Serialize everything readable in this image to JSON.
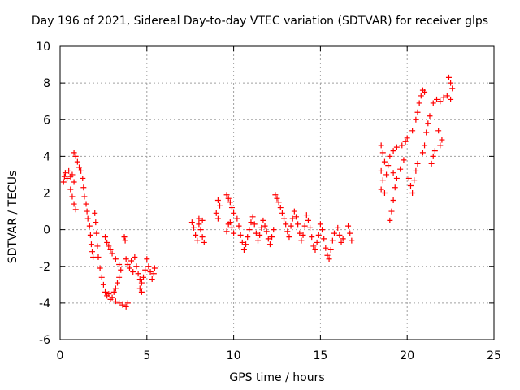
{
  "chart_data": {
    "type": "scatter",
    "title": "Day 196 of 2021, Sidereal Day-to-day VTEC variation (SDTVAR) for receiver glps",
    "xlabel": "GPS time / hours",
    "ylabel": "SDTVAR / TECUs",
    "xlim": [
      0,
      25
    ],
    "ylim": [
      -6,
      10
    ],
    "xticks": [
      0,
      5,
      10,
      15,
      20,
      25
    ],
    "yticks": [
      -6,
      -4,
      -2,
      0,
      2,
      4,
      6,
      8,
      10
    ],
    "grid": true,
    "marker": "+",
    "color": "#ff0000",
    "series": [
      {
        "name": "SDTVAR",
        "points": [
          [
            0.2,
            2.6
          ],
          [
            0.25,
            2.9
          ],
          [
            0.3,
            3.1
          ],
          [
            0.4,
            2.8
          ],
          [
            0.5,
            3.2
          ],
          [
            0.6,
            2.9
          ],
          [
            0.7,
            3.0
          ],
          [
            0.8,
            2.6
          ],
          [
            0.6,
            2.2
          ],
          [
            0.7,
            1.8
          ],
          [
            0.8,
            1.4
          ],
          [
            0.9,
            1.1
          ],
          [
            0.8,
            4.2
          ],
          [
            0.9,
            4.0
          ],
          [
            1.0,
            3.7
          ],
          [
            1.1,
            3.4
          ],
          [
            1.2,
            3.2
          ],
          [
            1.3,
            2.8
          ],
          [
            1.35,
            2.3
          ],
          [
            1.4,
            1.8
          ],
          [
            1.5,
            1.4
          ],
          [
            1.55,
            1.0
          ],
          [
            1.6,
            0.6
          ],
          [
            1.7,
            0.2
          ],
          [
            1.75,
            -0.3
          ],
          [
            1.8,
            -0.8
          ],
          [
            1.85,
            -1.2
          ],
          [
            1.9,
            -1.5
          ],
          [
            2.0,
            0.9
          ],
          [
            2.05,
            0.4
          ],
          [
            2.1,
            -0.2
          ],
          [
            2.15,
            -0.9
          ],
          [
            2.2,
            -1.5
          ],
          [
            2.3,
            -2.1
          ],
          [
            2.4,
            -2.6
          ],
          [
            2.5,
            -3.0
          ],
          [
            2.6,
            -3.4
          ],
          [
            2.7,
            -3.6
          ],
          [
            2.8,
            -3.5
          ],
          [
            2.9,
            -3.8
          ],
          [
            3.0,
            -3.7
          ],
          [
            3.2,
            -3.9
          ],
          [
            3.4,
            -4.0
          ],
          [
            3.6,
            -4.1
          ],
          [
            3.8,
            -4.2
          ],
          [
            3.9,
            -4.0
          ],
          [
            2.6,
            -0.4
          ],
          [
            2.7,
            -0.7
          ],
          [
            2.8,
            -0.9
          ],
          [
            2.9,
            -1.1
          ],
          [
            3.0,
            -1.3
          ],
          [
            3.2,
            -1.6
          ],
          [
            3.4,
            -1.9
          ],
          [
            3.5,
            -2.2
          ],
          [
            3.4,
            -2.6
          ],
          [
            3.3,
            -2.9
          ],
          [
            3.2,
            -3.2
          ],
          [
            3.1,
            -3.4
          ],
          [
            3.7,
            -0.4
          ],
          [
            3.75,
            -0.6
          ],
          [
            3.8,
            -1.6
          ],
          [
            3.9,
            -1.9
          ],
          [
            4.0,
            -2.1
          ],
          [
            4.2,
            -2.3
          ],
          [
            4.1,
            -1.7
          ],
          [
            4.3,
            -1.5
          ],
          [
            4.4,
            -2.0
          ],
          [
            4.5,
            -2.4
          ],
          [
            4.6,
            -2.7
          ],
          [
            4.7,
            -2.9
          ],
          [
            4.8,
            -2.6
          ],
          [
            4.9,
            -2.2
          ],
          [
            5.0,
            -1.6
          ],
          [
            5.1,
            -2.0
          ],
          [
            5.2,
            -2.3
          ],
          [
            5.3,
            -2.7
          ],
          [
            5.4,
            -2.4
          ],
          [
            5.45,
            -2.1
          ],
          [
            4.6,
            -3.2
          ],
          [
            4.7,
            -3.4
          ],
          [
            7.6,
            0.4
          ],
          [
            7.7,
            0.1
          ],
          [
            7.8,
            -0.3
          ],
          [
            7.9,
            -0.6
          ],
          [
            8.0,
            0.3
          ],
          [
            8.1,
            0.0
          ],
          [
            8.2,
            -0.4
          ],
          [
            8.3,
            -0.7
          ],
          [
            8.0,
            0.6
          ],
          [
            8.2,
            0.5
          ],
          [
            9.1,
            1.6
          ],
          [
            9.2,
            1.3
          ],
          [
            9.0,
            0.9
          ],
          [
            9.1,
            0.6
          ],
          [
            9.6,
            1.9
          ],
          [
            9.7,
            1.7
          ],
          [
            9.8,
            1.5
          ],
          [
            9.9,
            1.2
          ],
          [
            10.0,
            0.9
          ],
          [
            9.8,
            0.4
          ],
          [
            9.9,
            0.1
          ],
          [
            10.0,
            -0.2
          ],
          [
            9.6,
            -0.1
          ],
          [
            9.7,
            0.3
          ],
          [
            10.2,
            0.6
          ],
          [
            10.3,
            0.2
          ],
          [
            10.4,
            -0.3
          ],
          [
            10.5,
            -0.7
          ],
          [
            10.6,
            -1.1
          ],
          [
            10.7,
            -0.8
          ],
          [
            10.8,
            -0.4
          ],
          [
            10.9,
            0.0
          ],
          [
            11.0,
            0.4
          ],
          [
            11.1,
            0.7
          ],
          [
            11.2,
            0.3
          ],
          [
            11.3,
            -0.2
          ],
          [
            11.4,
            -0.6
          ],
          [
            11.5,
            -0.3
          ],
          [
            11.6,
            0.1
          ],
          [
            11.7,
            0.5
          ],
          [
            11.8,
            0.2
          ],
          [
            11.9,
            -0.1
          ],
          [
            12.0,
            -0.5
          ],
          [
            12.1,
            -0.8
          ],
          [
            12.2,
            -0.4
          ],
          [
            12.3,
            0.0
          ],
          [
            12.4,
            1.9
          ],
          [
            12.5,
            1.7
          ],
          [
            12.6,
            1.5
          ],
          [
            12.7,
            1.2
          ],
          [
            12.8,
            0.9
          ],
          [
            12.9,
            0.6
          ],
          [
            13.0,
            0.3
          ],
          [
            13.1,
            -0.1
          ],
          [
            13.2,
            -0.4
          ],
          [
            13.3,
            0.2
          ],
          [
            13.4,
            0.6
          ],
          [
            13.5,
            1.0
          ],
          [
            13.6,
            0.7
          ],
          [
            13.7,
            0.3
          ],
          [
            13.8,
            -0.2
          ],
          [
            13.9,
            -0.6
          ],
          [
            14.0,
            -0.3
          ],
          [
            14.1,
            0.2
          ],
          [
            14.2,
            0.8
          ],
          [
            14.3,
            0.5
          ],
          [
            14.4,
            0.1
          ],
          [
            14.5,
            -0.4
          ],
          [
            14.6,
            -0.9
          ],
          [
            14.7,
            -1.1
          ],
          [
            14.8,
            -0.7
          ],
          [
            14.9,
            -0.3
          ],
          [
            15.0,
            0.3
          ],
          [
            15.1,
            0.0
          ],
          [
            15.2,
            -0.5
          ],
          [
            15.3,
            -1.0
          ],
          [
            15.4,
            -1.4
          ],
          [
            15.5,
            -1.6
          ],
          [
            15.6,
            -1.1
          ],
          [
            15.7,
            -0.6
          ],
          [
            15.8,
            -0.2
          ],
          [
            16.0,
            0.1
          ],
          [
            16.1,
            -0.3
          ],
          [
            16.2,
            -0.7
          ],
          [
            16.6,
            0.2
          ],
          [
            16.7,
            -0.2
          ],
          [
            16.8,
            -0.6
          ],
          [
            16.3,
            -0.5
          ],
          [
            18.5,
            4.6
          ],
          [
            18.6,
            4.2
          ],
          [
            18.7,
            3.7
          ],
          [
            18.5,
            3.2
          ],
          [
            18.6,
            2.7
          ],
          [
            18.5,
            2.2
          ],
          [
            18.7,
            2.0
          ],
          [
            18.8,
            3.0
          ],
          [
            18.9,
            3.5
          ],
          [
            19.0,
            4.0
          ],
          [
            19.2,
            4.3
          ],
          [
            19.4,
            4.5
          ],
          [
            19.2,
            3.1
          ],
          [
            19.4,
            2.8
          ],
          [
            19.3,
            2.3
          ],
          [
            19.2,
            1.6
          ],
          [
            19.1,
            1.0
          ],
          [
            19.0,
            0.5
          ],
          [
            19.6,
            3.3
          ],
          [
            19.8,
            3.8
          ],
          [
            19.7,
            4.6
          ],
          [
            19.9,
            4.8
          ],
          [
            20.0,
            5.0
          ],
          [
            20.1,
            2.8
          ],
          [
            20.2,
            2.4
          ],
          [
            20.3,
            2.0
          ],
          [
            20.4,
            2.7
          ],
          [
            20.5,
            3.2
          ],
          [
            20.6,
            3.6
          ],
          [
            20.3,
            5.4
          ],
          [
            20.5,
            6.0
          ],
          [
            20.6,
            6.4
          ],
          [
            20.7,
            6.9
          ],
          [
            20.8,
            7.3
          ],
          [
            20.9,
            7.6
          ],
          [
            21.0,
            7.5
          ],
          [
            20.9,
            4.2
          ],
          [
            21.0,
            4.6
          ],
          [
            21.1,
            5.3
          ],
          [
            21.2,
            5.8
          ],
          [
            21.3,
            6.2
          ],
          [
            21.5,
            6.9
          ],
          [
            21.4,
            3.6
          ],
          [
            21.5,
            4.0
          ],
          [
            21.6,
            4.3
          ],
          [
            21.8,
            5.4
          ],
          [
            21.7,
            7.1
          ],
          [
            21.9,
            7.0
          ],
          [
            22.1,
            7.2
          ],
          [
            21.9,
            4.6
          ],
          [
            22.0,
            4.9
          ],
          [
            22.3,
            7.3
          ],
          [
            22.4,
            8.3
          ],
          [
            22.5,
            8.0
          ],
          [
            22.6,
            7.7
          ],
          [
            22.5,
            7.1
          ]
        ]
      }
    ]
  }
}
